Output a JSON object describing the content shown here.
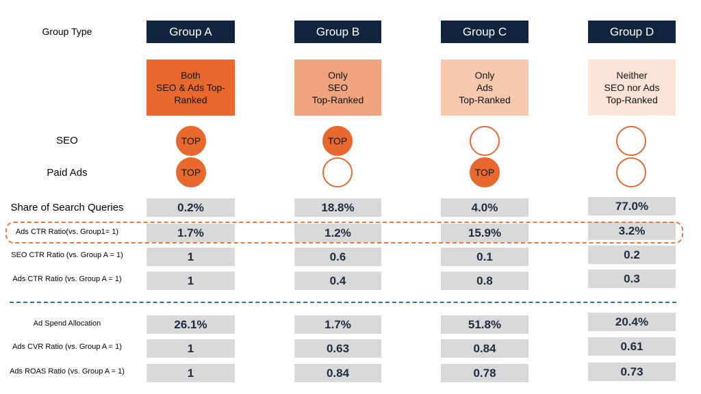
{
  "row_labels": {
    "group_type": "Group Type",
    "seo": "SEO",
    "paid_ads": "Paid Ads",
    "share": "Share of Search Queries",
    "ads_ctr_group1": "Ads CTR Ratio(vs. Group1= 1)",
    "seo_ctr": "SEO CTR Ratio (vs. Group A = 1)",
    "ads_ctr": "Ads CTR Ratio (vs. Group A = 1)",
    "ad_spend": "Ad Spend Allocation",
    "ads_cvr": "Ads CVR Ratio (vs. Group A = 1)",
    "ads_roas": "Ads ROAS Ratio (vs. Group A = 1)"
  },
  "groups": [
    {
      "name": "Group A",
      "description": "Both\nSEO & Ads Top-\nRanked",
      "color": "#e8682e",
      "text_color": "#111111",
      "seo": "TOP",
      "ads": "TOP"
    },
    {
      "name": "Group B",
      "description": "Only\nSEO\nTop-Ranked",
      "color": "#f0a47e",
      "text_color": "#111111",
      "seo": "TOP",
      "ads": ""
    },
    {
      "name": "Group C",
      "description": "Only\nAds\nTop-Ranked",
      "color": "#f6c8ae",
      "text_color": "#111111",
      "seo": "",
      "ads": "TOP"
    },
    {
      "name": "Group D",
      "description": "Neither\nSEO nor Ads\nTop-Ranked",
      "color": "#fbe3d5",
      "text_color": "#111111",
      "seo": "",
      "ads": ""
    }
  ],
  "colors": {
    "header": "#10253d",
    "accent": "#e8682e",
    "cell_bg": "#d9d9d9",
    "cell_text": "#1c2b40",
    "divider": "#2e6e9e"
  },
  "chart_data": {
    "type": "table",
    "columns": [
      "Group A",
      "Group B",
      "Group C",
      "Group D"
    ],
    "rows": [
      {
        "label": "Share of Search Queries",
        "values": [
          "0.2%",
          "18.8%",
          "4.0%",
          "77.0%"
        ]
      },
      {
        "label": "Ads CTR Ratio(vs. Group1= 1)",
        "values": [
          "1.7%",
          "1.2%",
          "15.9%",
          "3.2%"
        ],
        "highlighted": true
      },
      {
        "label": "SEO CTR Ratio (vs. Group A = 1)",
        "values": [
          "1",
          "0.6",
          "0.1",
          "0.2"
        ]
      },
      {
        "label": "Ads CTR Ratio (vs. Group A = 1)",
        "values": [
          "1",
          "0.4",
          "0.8",
          "0.3"
        ]
      },
      {
        "label": "Ad Spend Allocation",
        "values": [
          "26.1%",
          "1.7%",
          "51.8%",
          "20.4%"
        ]
      },
      {
        "label": "Ads CVR Ratio (vs. Group A = 1)",
        "values": [
          "1",
          "0.63",
          "0.84",
          "0.61"
        ]
      },
      {
        "label": "Ads ROAS Ratio (vs. Group A = 1)",
        "values": [
          "1",
          "0.84",
          "0.78",
          "0.73"
        ]
      }
    ]
  }
}
